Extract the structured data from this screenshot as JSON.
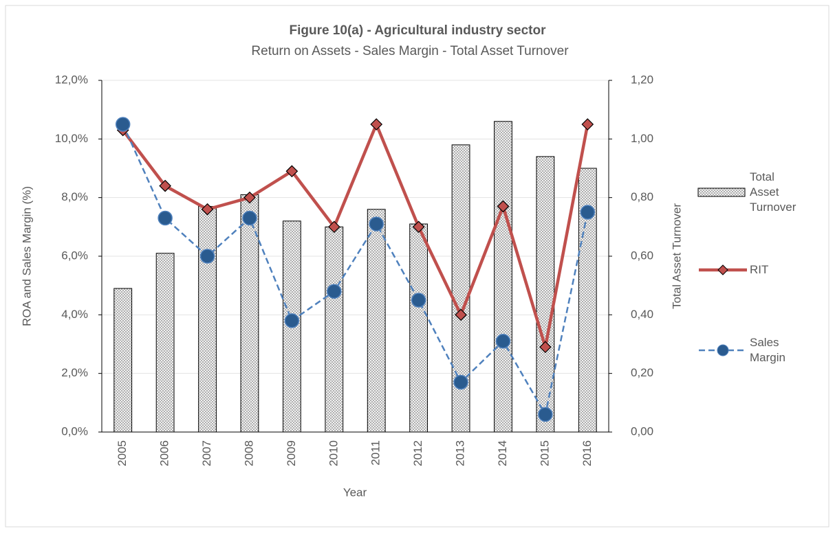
{
  "chart_data": {
    "type": "bar-line",
    "title": "Figure 10(a) - Agricultural industry sector",
    "subtitle": "Return on Assets - Sales Margin - Total Asset Turnover",
    "x_label": "Year",
    "y_label": "ROA and Sales Margin (%)",
    "y2_label": "Total Asset Turnover",
    "categories": [
      "2005",
      "2006",
      "2007",
      "2008",
      "2009",
      "2010",
      "2011",
      "2012",
      "2013",
      "2014",
      "2015",
      "2016"
    ],
    "ylim": [
      0,
      12
    ],
    "yticks": [
      {
        "value": 0,
        "label": "0,0%"
      },
      {
        "value": 2,
        "label": "2,0%"
      },
      {
        "value": 4,
        "label": "4,0%"
      },
      {
        "value": 6,
        "label": "6,0%"
      },
      {
        "value": 8,
        "label": "8,0%"
      },
      {
        "value": 10,
        "label": "10,0%"
      },
      {
        "value": 12,
        "label": "12,0%"
      }
    ],
    "y2lim": [
      0,
      1.2
    ],
    "y2ticks": [
      {
        "value": 0,
        "label": "0,00"
      },
      {
        "value": 0.2,
        "label": "0,20"
      },
      {
        "value": 0.4,
        "label": "0,40"
      },
      {
        "value": 0.6,
        "label": "0,60"
      },
      {
        "value": 0.8,
        "label": "0,80"
      },
      {
        "value": 1,
        "label": "1,00"
      },
      {
        "value": 1.2,
        "label": "1,20"
      }
    ],
    "grid": true,
    "legend": "right",
    "series": [
      {
        "name": "Total Asset Turnover",
        "kind": "bar",
        "axis": "y2",
        "color": "#d9d9d9",
        "values": [
          0.49,
          0.61,
          0.77,
          0.81,
          0.72,
          0.7,
          0.76,
          0.71,
          0.98,
          1.06,
          0.94,
          0.9
        ]
      },
      {
        "name": "RIT",
        "kind": "line",
        "marker": "diamond",
        "line_style": "solid",
        "color": "#c0504d",
        "values": [
          10.3,
          8.4,
          7.6,
          8.0,
          8.9,
          7.0,
          10.5,
          7.0,
          4.0,
          7.7,
          2.9,
          10.5
        ]
      },
      {
        "name": "Sales Margin",
        "kind": "line",
        "marker": "circle",
        "line_style": "dashed",
        "color": "#4f81bd",
        "values": [
          10.5,
          7.3,
          6.0,
          7.3,
          3.8,
          4.8,
          7.1,
          4.5,
          1.7,
          3.1,
          0.6,
          7.5
        ]
      }
    ]
  }
}
